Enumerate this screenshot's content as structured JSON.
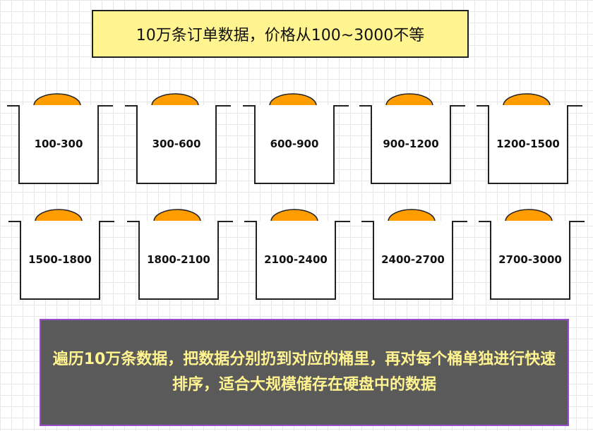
{
  "title": "10万条订单数据，价格从100~3000不等",
  "buckets": [
    {
      "label": "100-300"
    },
    {
      "label": "300-600"
    },
    {
      "label": "600-900"
    },
    {
      "label": "900-1200"
    },
    {
      "label": "1200-1500"
    },
    {
      "label": "1500-1800"
    },
    {
      "label": "1800-2100"
    },
    {
      "label": "2100-2400"
    },
    {
      "label": "2400-2700"
    },
    {
      "label": "2700-3000"
    }
  ],
  "summary": "遍历10万条数据，把数据分别扔到对应的桶里，再对每个桶单独进行快速排序，适合大规模储存在硬盘中的数据",
  "colors": {
    "title_fill": "#fff48f",
    "lid_fill": "#ff9c00",
    "summary_fill": "#5a5a5a",
    "summary_text": "#fff48f",
    "summary_border": "#9b4bd0"
  }
}
